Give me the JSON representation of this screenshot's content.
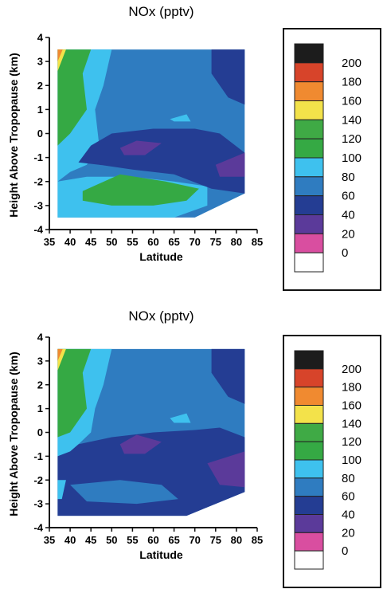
{
  "chart_data": [
    {
      "type": "heatmap",
      "title": "NOx (pptv)",
      "xlabel": "Latitude",
      "ylabel": "Height Above Tropopause (km)",
      "xlim": [
        35,
        85
      ],
      "ylim": [
        -4,
        4
      ],
      "x_ticks": [
        "35",
        "40",
        "45",
        "50",
        "55",
        "60",
        "65",
        "70",
        "75",
        "80",
        "85"
      ],
      "y_ticks": [
        "4",
        "3",
        "2",
        "1",
        "0",
        "-1",
        "-2",
        "-3",
        "-4"
      ],
      "legend": {
        "placement": "right",
        "levels": [
          "200",
          "180",
          "160",
          "140",
          "120",
          "100",
          "80",
          "60",
          "40",
          "20",
          "0"
        ],
        "colors": [
          "#1c1c1c",
          "#d7442a",
          "#f08a30",
          "#f3e24a",
          "#3faa45",
          "#35a944",
          "#3ec1ee",
          "#2f7cc0",
          "#243d93",
          "#5b3a9a",
          "#d94ea0",
          "#ffffff"
        ]
      },
      "regions": [
        {
          "level_range": [
            60,
            80
          ],
          "color": "#2f7cc0",
          "polygon": [
            [
              37,
              3.5
            ],
            [
              82,
              3.5
            ],
            [
              82,
              -2.5
            ],
            [
              70,
              -3.5
            ],
            [
              37,
              -3.5
            ]
          ]
        },
        {
          "level_range": [
            80,
            100
          ],
          "color": "#3ec1ee",
          "polygon": [
            [
              37,
              3.5
            ],
            [
              50,
              3.5
            ],
            [
              48,
              2
            ],
            [
              46,
              1
            ],
            [
              47,
              -0.5
            ],
            [
              44,
              -1.3
            ],
            [
              40,
              -1.6
            ],
            [
              37,
              -2
            ]
          ]
        },
        {
          "level_range": [
            80,
            100
          ],
          "color": "#3ec1ee",
          "polygon": [
            [
              37,
              -2
            ],
            [
              44,
              -1.8
            ],
            [
              55,
              -1.8
            ],
            [
              65,
              -2
            ],
            [
              73,
              -2.2
            ],
            [
              73,
              -3
            ],
            [
              65,
              -3.5
            ],
            [
              37,
              -3.5
            ]
          ]
        },
        {
          "level_range": [
            100,
            120
          ],
          "color": "#35a944",
          "polygon": [
            [
              37,
              3.5
            ],
            [
              45,
              3.5
            ],
            [
              43,
              2.5
            ],
            [
              44,
              1
            ],
            [
              40,
              0
            ],
            [
              37,
              -0.5
            ]
          ]
        },
        {
          "level_range": [
            100,
            120
          ],
          "color": "#35a944",
          "polygon": [
            [
              43,
              -2.4
            ],
            [
              52,
              -1.7
            ],
            [
              63,
              -2
            ],
            [
              71,
              -2.3
            ],
            [
              68,
              -2.8
            ],
            [
              60,
              -3
            ],
            [
              50,
              -3
            ],
            [
              43,
              -2.8
            ]
          ]
        },
        {
          "level_range": [
            140,
            160
          ],
          "color": "#f3e24a",
          "polygon": [
            [
              37,
              3.5
            ],
            [
              39,
              3.5
            ],
            [
              37,
              2.6
            ]
          ]
        },
        {
          "level_range": [
            160,
            180
          ],
          "color": "#f08a30",
          "polygon": [
            [
              37,
              3.5
            ],
            [
              38.2,
              3.5
            ],
            [
              37,
              3.0
            ]
          ]
        },
        {
          "level_range": [
            40,
            60
          ],
          "color": "#243d93",
          "polygon": [
            [
              45,
              -0.5
            ],
            [
              50,
              0
            ],
            [
              60,
              0.2
            ],
            [
              70,
              0.2
            ],
            [
              76,
              0
            ],
            [
              82,
              -0.8
            ],
            [
              82,
              -2.5
            ],
            [
              74,
              -2.3
            ],
            [
              65,
              -1.7
            ],
            [
              55,
              -1.5
            ],
            [
              47,
              -1.3
            ],
            [
              42,
              -1.2
            ]
          ]
        },
        {
          "level_range": [
            40,
            60
          ],
          "color": "#243d93",
          "polygon": [
            [
              74,
              3.5
            ],
            [
              82,
              3.5
            ],
            [
              82,
              1.2
            ],
            [
              78,
              1.5
            ],
            [
              74,
              2.5
            ]
          ]
        },
        {
          "level_range": [
            20,
            40
          ],
          "color": "#5b3a9a",
          "polygon": [
            [
              52,
              -0.6
            ],
            [
              56,
              -0.3
            ],
            [
              62,
              -0.4
            ],
            [
              58,
              -0.9
            ],
            [
              53,
              -0.9
            ]
          ]
        },
        {
          "level_range": [
            20,
            40
          ],
          "color": "#5b3a9a",
          "polygon": [
            [
              75,
              -1.3
            ],
            [
              82,
              -0.8
            ],
            [
              82,
              -1.8
            ],
            [
              76,
              -1.8
            ]
          ]
        },
        {
          "level_range": [
            80,
            100
          ],
          "color": "#3ec1ee",
          "polygon": [
            [
              64,
              0.6
            ],
            [
              68,
              0.8
            ],
            [
              69,
              0.5
            ],
            [
              65,
              0.5
            ]
          ]
        }
      ]
    },
    {
      "type": "heatmap",
      "title": "NOx (pptv)",
      "xlabel": "Latitude",
      "ylabel": "Height Above Tropopause (km)",
      "xlim": [
        35,
        85
      ],
      "ylim": [
        -4,
        4
      ],
      "x_ticks": [
        "35",
        "40",
        "45",
        "50",
        "55",
        "60",
        "65",
        "70",
        "75",
        "80",
        "85"
      ],
      "y_ticks": [
        "4",
        "3",
        "2",
        "1",
        "0",
        "-1",
        "-2",
        "-3",
        "-4"
      ],
      "legend": {
        "placement": "right",
        "levels": [
          "200",
          "180",
          "160",
          "140",
          "120",
          "100",
          "80",
          "60",
          "40",
          "20",
          "0"
        ],
        "colors": [
          "#1c1c1c",
          "#d7442a",
          "#f08a30",
          "#f3e24a",
          "#3faa45",
          "#35a944",
          "#3ec1ee",
          "#2f7cc0",
          "#243d93",
          "#5b3a9a",
          "#d94ea0",
          "#ffffff"
        ]
      },
      "regions": [
        {
          "level_range": [
            60,
            80
          ],
          "color": "#2f7cc0",
          "polygon": [
            [
              37,
              3.5
            ],
            [
              82,
              3.5
            ],
            [
              82,
              -2.5
            ],
            [
              68,
              -3.5
            ],
            [
              37,
              -3.5
            ]
          ]
        },
        {
          "level_range": [
            40,
            60
          ],
          "color": "#243d93",
          "polygon": [
            [
              37,
              -1
            ],
            [
              42,
              -0.5
            ],
            [
              50,
              -0.2
            ],
            [
              60,
              0
            ],
            [
              70,
              0.1
            ],
            [
              76,
              0.2
            ],
            [
              82,
              -0.2
            ],
            [
              82,
              -2.5
            ],
            [
              68,
              -3.5
            ],
            [
              37,
              -3.5
            ]
          ]
        },
        {
          "level_range": [
            40,
            60
          ],
          "color": "#243d93",
          "polygon": [
            [
              74,
              3.5
            ],
            [
              82,
              3.5
            ],
            [
              82,
              1.2
            ],
            [
              78,
              1.5
            ],
            [
              74,
              2.5
            ]
          ]
        },
        {
          "level_range": [
            60,
            80
          ],
          "color": "#2f7cc0",
          "polygon": [
            [
              40,
              -2.2
            ],
            [
              52,
              -2
            ],
            [
              62,
              -2.2
            ],
            [
              66,
              -2.8
            ],
            [
              56,
              -3
            ],
            [
              44,
              -2.9
            ]
          ]
        },
        {
          "level_range": [
            80,
            100
          ],
          "color": "#3ec1ee",
          "polygon": [
            [
              37,
              3.5
            ],
            [
              50,
              3.5
            ],
            [
              48,
              2
            ],
            [
              46,
              1
            ],
            [
              45,
              0
            ],
            [
              42,
              -0.5
            ],
            [
              40,
              -0.8
            ],
            [
              37,
              -1
            ]
          ]
        },
        {
          "level_range": [
            80,
            100
          ],
          "color": "#3ec1ee",
          "polygon": [
            [
              37,
              -2
            ],
            [
              39,
              -2
            ],
            [
              38,
              -2.8
            ],
            [
              37,
              -2.8
            ]
          ]
        },
        {
          "level_range": [
            100,
            120
          ],
          "color": "#35a944",
          "polygon": [
            [
              37,
              3.5
            ],
            [
              45,
              3.5
            ],
            [
              43,
              2.5
            ],
            [
              44,
              1
            ],
            [
              40,
              0
            ],
            [
              37,
              -0.2
            ]
          ]
        },
        {
          "level_range": [
            140,
            160
          ],
          "color": "#f3e24a",
          "polygon": [
            [
              37,
              3.5
            ],
            [
              39,
              3.5
            ],
            [
              37,
              2.6
            ]
          ]
        },
        {
          "level_range": [
            160,
            180
          ],
          "color": "#f08a30",
          "polygon": [
            [
              37,
              3.5
            ],
            [
              38.2,
              3.5
            ],
            [
              37,
              3.0
            ]
          ]
        },
        {
          "level_range": [
            20,
            40
          ],
          "color": "#5b3a9a",
          "polygon": [
            [
              52,
              -0.5
            ],
            [
              56,
              -0.1
            ],
            [
              62,
              -0.4
            ],
            [
              58,
              -0.9
            ],
            [
              53,
              -0.9
            ]
          ]
        },
        {
          "level_range": [
            20,
            40
          ],
          "color": "#5b3a9a",
          "polygon": [
            [
              73,
              -1.3
            ],
            [
              82,
              -0.8
            ],
            [
              82,
              -2.3
            ],
            [
              76,
              -2.2
            ]
          ]
        },
        {
          "level_range": [
            80,
            100
          ],
          "color": "#3ec1ee",
          "polygon": [
            [
              64,
              0.6
            ],
            [
              68,
              0.8
            ],
            [
              69,
              0.4
            ],
            [
              65,
              0.4
            ]
          ]
        }
      ]
    }
  ]
}
